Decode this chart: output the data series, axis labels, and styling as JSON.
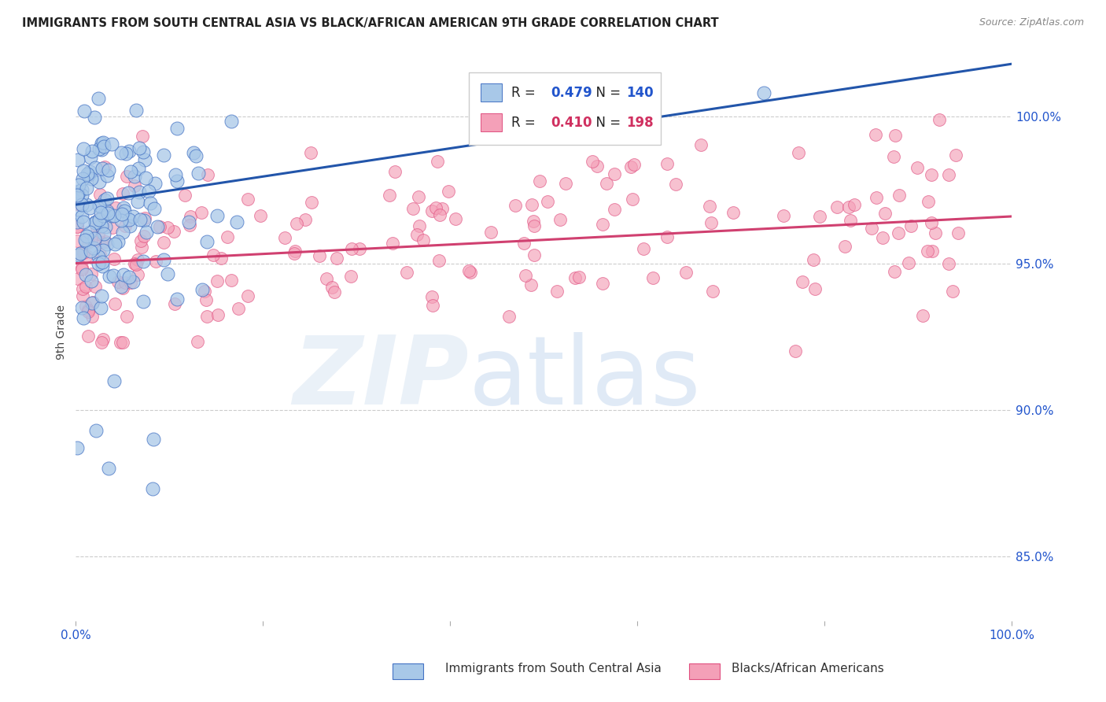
{
  "title": "IMMIGRANTS FROM SOUTH CENTRAL ASIA VS BLACK/AFRICAN AMERICAN 9TH GRADE CORRELATION CHART",
  "source": "Source: ZipAtlas.com",
  "ylabel": "9th Grade",
  "legend1_label": "Immigrants from South Central Asia",
  "legend2_label": "Blacks/African Americans",
  "R1": 0.479,
  "N1": 140,
  "R2": 0.41,
  "N2": 198,
  "blue_fill": "#a8c8e8",
  "blue_edge": "#4472c4",
  "pink_fill": "#f4a0b8",
  "pink_edge": "#e05080",
  "blue_line": "#2255aa",
  "pink_line": "#d04070",
  "yticks": [
    0.85,
    0.9,
    0.95,
    1.0
  ],
  "ytick_labels": [
    "85.0%",
    "90.0%",
    "95.0%",
    "100.0%"
  ],
  "xlim": [
    0.0,
    1.0
  ],
  "ylim": [
    0.828,
    1.025
  ]
}
